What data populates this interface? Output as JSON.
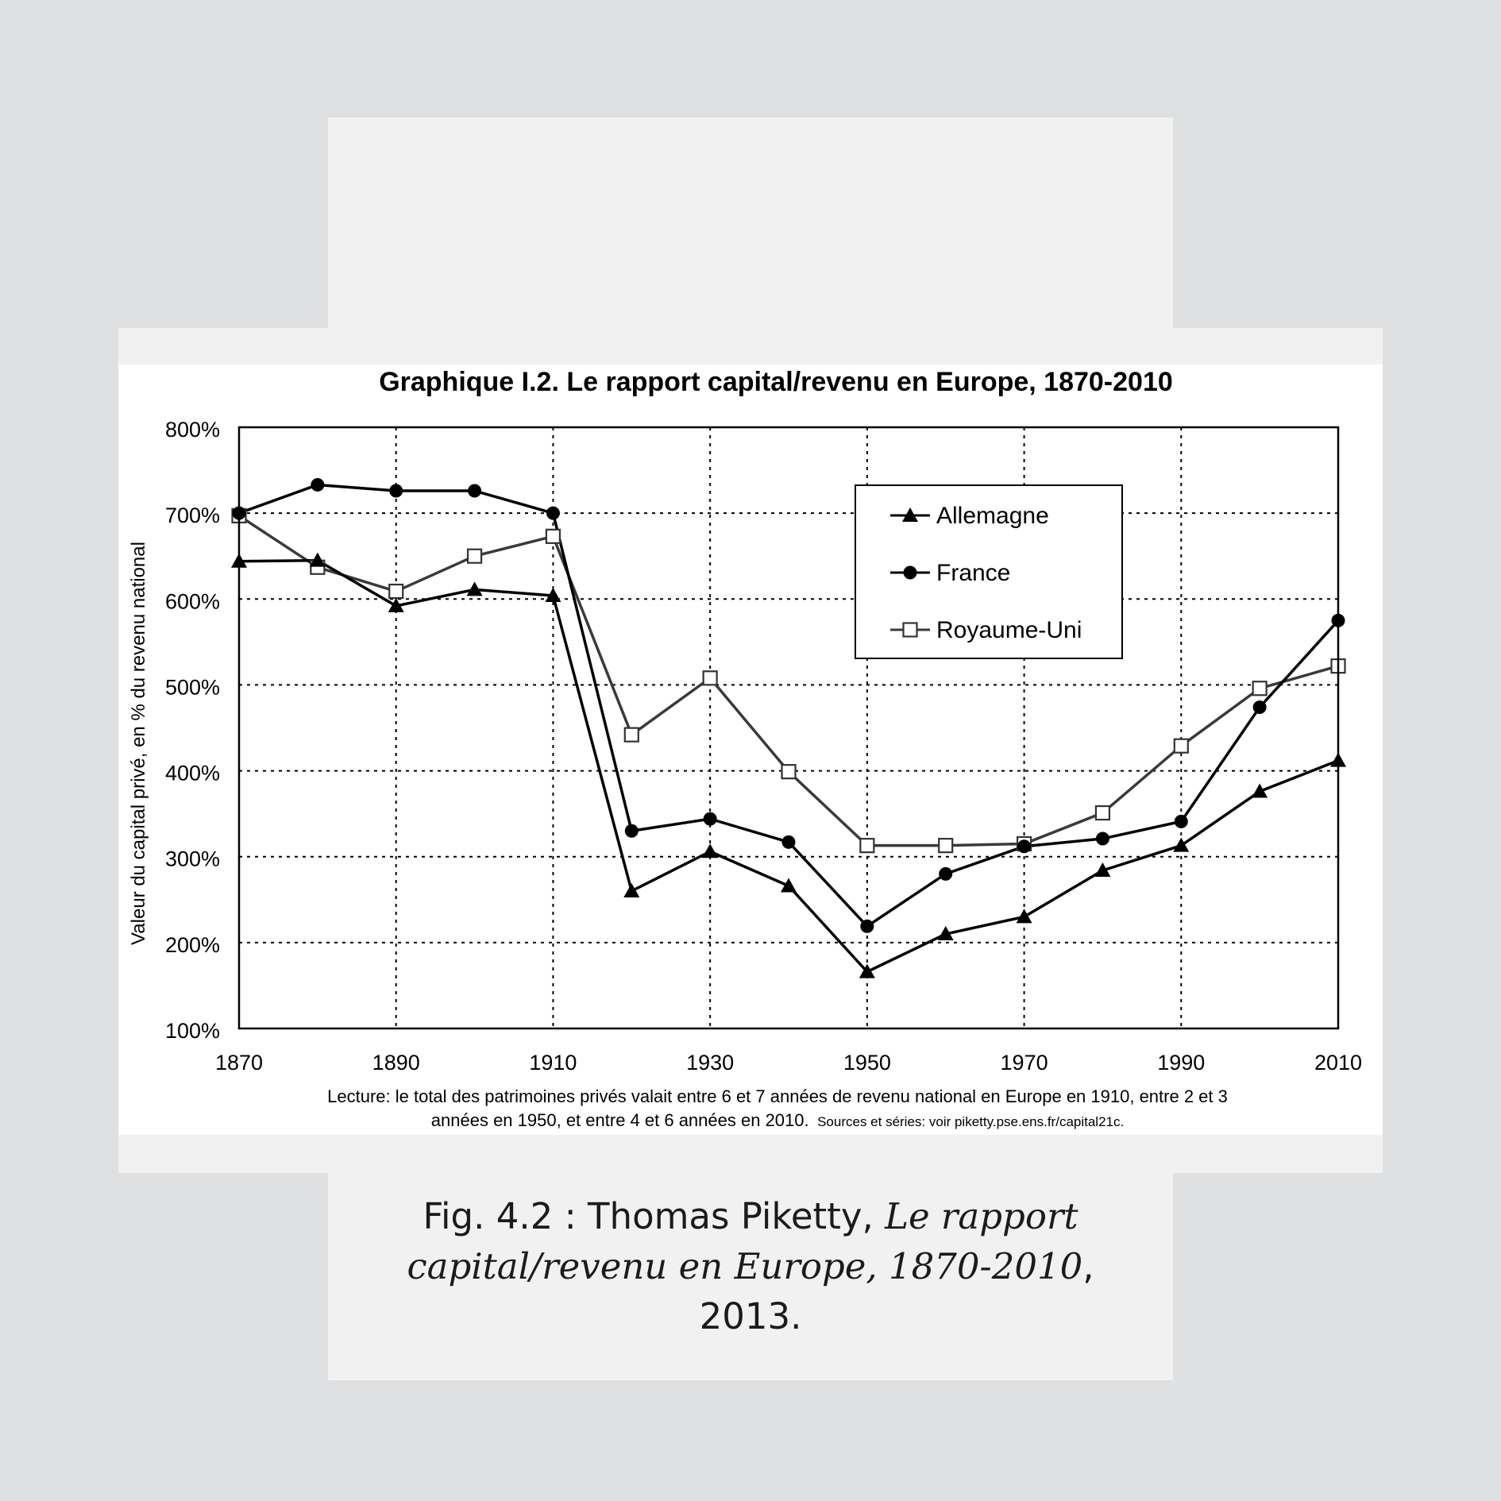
{
  "chart_data": {
    "type": "line",
    "title": "Graphique I.2. Le rapport capital/revenu en Europe, 1870-2010",
    "ylabel": "Valeur du capital privé, en % du revenu national",
    "xlabel": "",
    "x": [
      1870,
      1880,
      1890,
      1900,
      1910,
      1920,
      1930,
      1940,
      1950,
      1960,
      1970,
      1980,
      1990,
      2000,
      2010
    ],
    "xlim": [
      1870,
      2010
    ],
    "ylim": [
      100,
      800
    ],
    "x_ticks": [
      "1870",
      "1890",
      "1910",
      "1930",
      "1950",
      "1970",
      "1990",
      "2010"
    ],
    "y_ticks": [
      "800%",
      "700%",
      "600%",
      "500%",
      "400%",
      "300%",
      "200%",
      "100%"
    ],
    "grid": true,
    "legend_position": "top-right",
    "series": [
      {
        "name": "Allemagne",
        "marker": "triangle",
        "color": "#000000",
        "values": [
          644,
          645,
          592,
          611,
          604,
          260,
          306,
          266,
          166,
          210,
          230,
          284,
          313,
          376,
          412
        ]
      },
      {
        "name": "France",
        "marker": "circle",
        "color": "#000000",
        "values": [
          700,
          733,
          726,
          726,
          700,
          330,
          344,
          317,
          219,
          280,
          312,
          321,
          341,
          474,
          575
        ]
      },
      {
        "name": "Royaume-Uni",
        "marker": "square-open",
        "color": "#3a3a3a",
        "values": [
          697,
          637,
          609,
          650,
          673,
          442,
          508,
          399,
          313,
          313,
          315,
          351,
          429,
          496,
          522
        ]
      }
    ],
    "note_main": "Lecture: le total des patrimoines privés valait entre 6 et 7 années de revenu national en Europe en 1910, entre 2 et 3",
    "note_line2": "années en 1950, et entre 4 et 6 années en 2010.",
    "note_sources": "Sources et séries: voir piketty.pse.ens.fr/capital21c."
  },
  "caption": {
    "prefix": "Fig. 4.2 : Thomas Piketty,",
    "title_line1": "Le rapport",
    "title_line2": "capital/revenu en Europe, 1870-2010",
    "suffix": ",",
    "year": "2013."
  }
}
